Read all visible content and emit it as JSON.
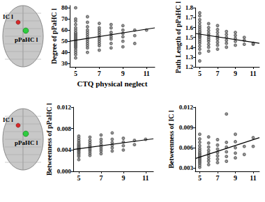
{
  "chart_data": [
    {
      "type": "scatter",
      "xlabel": "CTQ physical neglect",
      "ylabel": "Degree of pPaHC l",
      "xlim": [
        4.5,
        11.7
      ],
      "xticks": [
        5,
        7,
        9,
        11
      ],
      "ylim": [
        27,
        82
      ],
      "yticks": [
        30,
        40,
        50,
        60,
        70,
        80
      ],
      "series": [
        {
          "type": "scatter",
          "marker": "circle",
          "color": "#555555",
          "x": [
            5,
            5,
            5,
            5,
            5,
            5,
            5,
            5,
            5,
            5,
            5,
            5,
            5,
            5,
            5,
            5,
            5,
            5,
            5,
            5,
            5,
            5,
            5,
            5,
            5,
            6,
            6,
            6,
            6,
            6,
            6,
            6,
            6,
            6,
            6,
            6,
            6,
            6,
            7,
            7,
            7,
            7,
            7,
            7,
            7,
            7,
            7,
            7,
            7,
            8,
            8,
            8,
            8,
            8,
            8,
            8,
            8,
            9,
            9,
            9,
            9,
            9,
            9,
            10,
            10,
            10,
            11
          ],
          "values": [
            35,
            38,
            40,
            42,
            44,
            45,
            46,
            47,
            48,
            49,
            50,
            51,
            52,
            53,
            54,
            55,
            56,
            57,
            58,
            60,
            62,
            65,
            68,
            70,
            80,
            40,
            44,
            46,
            48,
            50,
            52,
            54,
            56,
            58,
            60,
            63,
            67,
            72,
            42,
            46,
            48,
            50,
            52,
            54,
            56,
            58,
            60,
            62,
            66,
            44,
            48,
            52,
            54,
            56,
            58,
            62,
            65,
            45,
            50,
            54,
            57,
            60,
            64,
            48,
            55,
            60,
            60
          ]
        },
        {
          "type": "line",
          "line_style": "solid",
          "color": "#000000",
          "x": [
            4.5,
            11.7
          ],
          "values": [
            50,
            62
          ]
        }
      ]
    },
    {
      "type": "scatter",
      "ylabel": "Path Length of pPaHC l",
      "xlim": [
        4.5,
        11.7
      ],
      "xticks": [
        5,
        7,
        9,
        11
      ],
      "ylim": [
        1.2,
        1.8
      ],
      "yticks": [
        1.2,
        1.3,
        1.4,
        1.5,
        1.6,
        1.7,
        1.8
      ],
      "series": [
        {
          "type": "scatter",
          "marker": "circle",
          "color": "#555555",
          "x": [
            5,
            5,
            5,
            5,
            5,
            5,
            5,
            5,
            5,
            5,
            5,
            5,
            5,
            5,
            5,
            5,
            5,
            5,
            5,
            5,
            6,
            6,
            6,
            6,
            6,
            6,
            6,
            6,
            6,
            6,
            6,
            7,
            7,
            7,
            7,
            7,
            7,
            7,
            7,
            7,
            8,
            8,
            8,
            8,
            8,
            8,
            9,
            9,
            9,
            9,
            9,
            10,
            10,
            10,
            11,
            11
          ],
          "values": [
            1.26,
            1.34,
            1.38,
            1.41,
            1.44,
            1.46,
            1.48,
            1.5,
            1.51,
            1.52,
            1.53,
            1.55,
            1.56,
            1.58,
            1.6,
            1.62,
            1.65,
            1.68,
            1.72,
            1.75,
            1.36,
            1.4,
            1.43,
            1.46,
            1.48,
            1.5,
            1.52,
            1.54,
            1.57,
            1.6,
            1.64,
            1.38,
            1.42,
            1.45,
            1.48,
            1.5,
            1.52,
            1.55,
            1.58,
            1.62,
            1.4,
            1.44,
            1.47,
            1.5,
            1.53,
            1.56,
            1.42,
            1.46,
            1.49,
            1.52,
            1.55,
            1.43,
            1.47,
            1.5,
            1.43,
            1.44
          ]
        },
        {
          "type": "line",
          "line_style": "solid",
          "color": "#000000",
          "x": [
            4.5,
            11.7
          ],
          "values": [
            1.54,
            1.44
          ]
        }
      ]
    },
    {
      "type": "scatter",
      "ylabel": "Betweenness of pPaHC l",
      "xlim": [
        4.5,
        11.7
      ],
      "xticks": [
        5,
        7,
        9,
        11
      ],
      "ylim": [
        0,
        0.012
      ],
      "yticks": [
        {
          "value": 0,
          "label": "0.000"
        },
        0.004,
        0.008,
        0.012
      ],
      "series": [
        {
          "type": "scatter",
          "marker": "circle",
          "color": "#555555",
          "x": [
            5,
            5,
            5,
            5,
            5,
            5,
            5,
            5,
            5,
            5,
            5,
            5,
            5,
            5,
            5,
            5,
            5,
            5,
            5,
            6,
            6,
            6,
            6,
            6,
            6,
            6,
            6,
            6,
            6,
            7,
            7,
            7,
            7,
            7,
            7,
            7,
            7,
            8,
            8,
            8,
            8,
            8,
            8,
            9,
            9,
            9,
            9,
            10,
            10,
            11
          ],
          "values": [
            0.0022,
            0.0028,
            0.0031,
            0.0034,
            0.0036,
            0.0038,
            0.004,
            0.0041,
            0.0042,
            0.0043,
            0.0044,
            0.0046,
            0.0048,
            0.005,
            0.0052,
            0.0055,
            0.0058,
            0.0062,
            0.0066,
            0.003,
            0.0034,
            0.0038,
            0.0041,
            0.0044,
            0.0047,
            0.005,
            0.0054,
            0.0058,
            0.0064,
            0.0033,
            0.0038,
            0.0042,
            0.0046,
            0.005,
            0.0055,
            0.006,
            0.0068,
            0.0038,
            0.0044,
            0.0049,
            0.0054,
            0.006,
            0.0072,
            0.004,
            0.0048,
            0.0055,
            0.0062,
            0.005,
            0.0058,
            0.006
          ]
        },
        {
          "type": "line",
          "line_style": "solid",
          "color": "#000000",
          "x": [
            4.5,
            11.7
          ],
          "values": [
            0.0041,
            0.0061
          ]
        }
      ]
    },
    {
      "type": "scatter",
      "ylabel": "Betweenness of IC l",
      "xlim": [
        4.5,
        11.7
      ],
      "xticks": [
        5,
        7,
        9,
        11
      ],
      "ylim": [
        0.0025,
        0.012
      ],
      "yticks": [
        0.003,
        0.006,
        0.009,
        0.012
      ],
      "series": [
        {
          "type": "scatter",
          "marker": "circle",
          "color": "#555555",
          "x": [
            5,
            5,
            5,
            5,
            5,
            5,
            5,
            5,
            5,
            5,
            5,
            5,
            5,
            5,
            5,
            5,
            5,
            6,
            6,
            6,
            6,
            6,
            6,
            6,
            6,
            6,
            7,
            7,
            7,
            7,
            7,
            7,
            7,
            8,
            8,
            8,
            8,
            8,
            8,
            9,
            9,
            9,
            9,
            9,
            10,
            10,
            11,
            11
          ],
          "values": [
            0.0031,
            0.0034,
            0.0037,
            0.0039,
            0.0041,
            0.0043,
            0.0045,
            0.0047,
            0.0049,
            0.0051,
            0.0053,
            0.0056,
            0.0059,
            0.0063,
            0.0068,
            0.0073,
            0.008,
            0.0035,
            0.004,
            0.0044,
            0.0048,
            0.0052,
            0.0056,
            0.0061,
            0.0067,
            0.0076,
            0.0038,
            0.0043,
            0.0048,
            0.0053,
            0.0058,
            0.0064,
            0.0072,
            0.004,
            0.0047,
            0.0054,
            0.0061,
            0.0068,
            0.011,
            0.0045,
            0.0052,
            0.006,
            0.0069,
            0.008,
            0.005,
            0.0062,
            0.0062,
            0.0075
          ]
        },
        {
          "type": "line",
          "line_style": "solid",
          "color": "#000000",
          "x": [
            4.5,
            11.7
          ],
          "values": [
            0.0044,
            0.0075
          ]
        }
      ]
    }
  ],
  "figures": [
    {
      "labels": [
        {
          "text": "IC l",
          "color": "#d62728"
        },
        {
          "text": "pPaHC l",
          "color": "#2ecc40"
        }
      ]
    },
    {
      "labels": [
        {
          "text": "IC l",
          "color": "#d62728"
        },
        {
          "text": "pPaHC l",
          "color": "#2ecc40"
        }
      ]
    }
  ]
}
